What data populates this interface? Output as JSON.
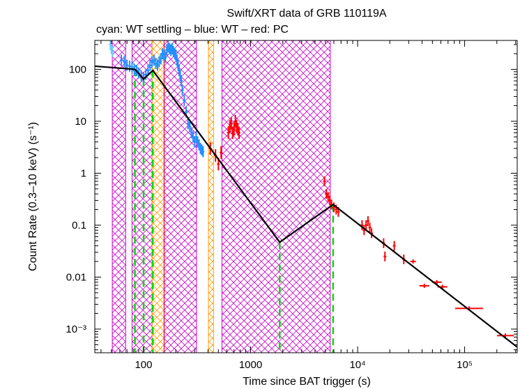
{
  "chart_data": {
    "type": "scatter",
    "title": "Swift/XRT data of GRB 110119A",
    "subtitle": "cyan: WT settling – blue: WT – red: PC",
    "xlabel": "Time since BAT trigger (s)",
    "ylabel": "Count Rate (0.3–10 keV) (s⁻¹)",
    "xscale": "log",
    "yscale": "log",
    "xlim": [
      35,
      310000
    ],
    "ylim": [
      0.00035,
      360
    ],
    "x_ticks": [
      {
        "value": 100,
        "label": "100"
      },
      {
        "value": 1000,
        "label": "1000"
      },
      {
        "value": 10000,
        "label": "10⁴"
      },
      {
        "value": 100000,
        "label": "10⁵"
      }
    ],
    "y_ticks": [
      {
        "value": 100,
        "label": "100"
      },
      {
        "value": 10,
        "label": "10"
      },
      {
        "value": 1,
        "label": "1"
      },
      {
        "value": 0.1,
        "label": "0.1"
      },
      {
        "value": 0.01,
        "label": "0.01"
      },
      {
        "value": 0.001,
        "label": "10⁻³"
      }
    ],
    "colors": {
      "wt_settling": "#66ccff",
      "wt": "#1e90ff",
      "pc": "#ff0000",
      "model": "#000000",
      "flare_region": "#cc00cc",
      "excluded_region": "#ff9900",
      "break_lines": "#00dd00"
    },
    "shaded_regions": [
      {
        "type": "flare",
        "x": [
          51,
          68
        ]
      },
      {
        "type": "flare",
        "x": [
          78,
          120
        ]
      },
      {
        "type": "excluded",
        "x": [
          120,
          157
        ]
      },
      {
        "type": "flare",
        "x": [
          155,
          312
        ]
      },
      {
        "type": "excluded",
        "x": [
          404,
          450
        ]
      },
      {
        "type": "flare",
        "x": [
          540,
          5550
        ]
      }
    ],
    "break_times": [
      83,
      100,
      122,
      1870,
      5900
    ],
    "model": {
      "x": [
        35,
        83,
        100,
        122,
        1870,
        5900,
        310000
      ],
      "y": [
        115,
        100,
        65,
        95,
        0.047,
        0.25,
        0.00045
      ]
    },
    "series": [
      {
        "name": "WT settling",
        "color": "#66ccff",
        "points": [
          [
            49,
            300
          ],
          [
            50,
            250
          ],
          [
            51,
            220
          ]
        ]
      },
      {
        "name": "WT",
        "color": "#1e90ff",
        "points": [
          [
            62,
            150
          ],
          [
            66,
            140
          ],
          [
            70,
            120
          ],
          [
            74,
            115
          ],
          [
            78,
            110
          ],
          [
            82,
            100
          ],
          [
            86,
            95
          ],
          [
            90,
            85
          ],
          [
            95,
            75
          ],
          [
            100,
            70
          ],
          [
            105,
            80
          ],
          [
            110,
            95
          ],
          [
            115,
            120
          ],
          [
            120,
            140
          ],
          [
            125,
            150
          ],
          [
            130,
            130
          ],
          [
            135,
            120
          ],
          [
            140,
            140
          ],
          [
            145,
            160
          ],
          [
            150,
            200
          ],
          [
            155,
            190
          ],
          [
            160,
            170
          ],
          [
            165,
            240
          ],
          [
            170,
            270
          ],
          [
            175,
            250
          ],
          [
            180,
            230
          ],
          [
            185,
            250
          ],
          [
            190,
            220
          ],
          [
            195,
            200
          ],
          [
            200,
            190
          ],
          [
            205,
            150
          ],
          [
            210,
            120
          ],
          [
            215,
            95
          ],
          [
            220,
            75
          ],
          [
            225,
            60
          ],
          [
            230,
            40
          ],
          [
            240,
            25
          ],
          [
            250,
            15
          ],
          [
            260,
            9
          ],
          [
            270,
            8
          ],
          [
            280,
            6
          ],
          [
            290,
            5
          ],
          [
            300,
            4
          ],
          [
            310,
            5
          ],
          [
            320,
            4
          ],
          [
            330,
            3.5
          ],
          [
            340,
            3
          ],
          [
            350,
            2.8
          ],
          [
            360,
            2.6
          ]
        ]
      },
      {
        "name": "PC",
        "color": "#ff0000",
        "points": [
          [
            420,
            3.0
          ],
          [
            470,
            2.2
          ],
          [
            500,
            1.5
          ],
          [
            530,
            2.5
          ],
          [
            620,
            6
          ],
          [
            640,
            8
          ],
          [
            660,
            9
          ],
          [
            680,
            6
          ],
          [
            700,
            7
          ],
          [
            720,
            10
          ],
          [
            740,
            8
          ],
          [
            760,
            7
          ],
          [
            780,
            6
          ],
          [
            4900,
            0.7
          ],
          [
            5100,
            0.4
          ],
          [
            5300,
            0.35
          ],
          [
            5500,
            0.3
          ],
          [
            5700,
            0.25
          ],
          [
            6000,
            0.22
          ],
          [
            6300,
            0.2
          ],
          [
            6600,
            0.18
          ],
          [
            11000,
            0.1
          ],
          [
            11500,
            0.08
          ],
          [
            12000,
            0.1
          ],
          [
            12500,
            0.12
          ],
          [
            13000,
            0.09
          ],
          [
            13500,
            0.07
          ],
          [
            17500,
            0.045
          ],
          [
            18000,
            0.025
          ],
          [
            22000,
            0.04
          ],
          [
            27000,
            0.022
          ],
          [
            33000,
            0.02
          ],
          [
            42000,
            0.0068
          ],
          [
            55000,
            0.008
          ],
          [
            62000,
            0.0065
          ],
          [
            110000,
            0.0025
          ],
          [
            240000,
            0.00075
          ]
        ]
      }
    ]
  }
}
